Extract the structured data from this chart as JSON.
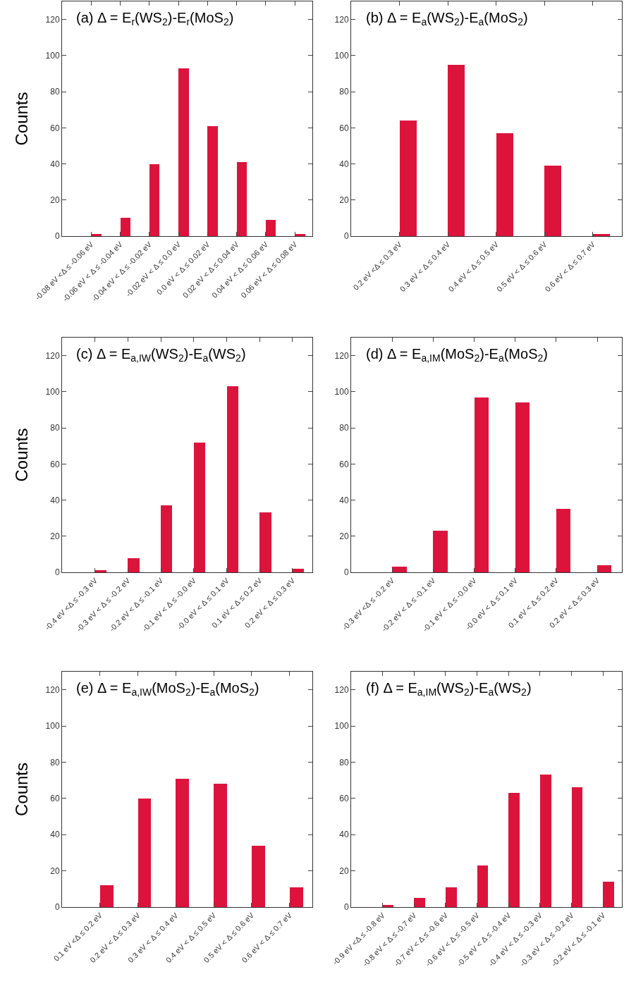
{
  "chart_data": [
    {
      "type": "bar",
      "title": "(a) Δ = E$_{r}$(WS$_{2}$)-E$_{r}$(MoS$_{2}$)",
      "ylabel": "Counts",
      "categories": [
        "-0.08 eV <Δ ≤ -0.06 eV",
        "-0.06 eV < Δ ≤ -0.04 eV",
        "-0.04 eV < Δ ≤ -0.02 eV",
        "-0.02 eV < Δ ≤ 0.0 eV",
        "0.0 eV < Δ ≤ 0.02 eV",
        "0.02 eV < Δ ≤ 0.04 eV",
        "0.04 eV < Δ ≤ 0.06 eV",
        "0.06 eV < Δ ≤ 0.08 eV"
      ],
      "values": [
        1,
        10,
        40,
        93,
        61,
        41,
        9,
        1
      ],
      "color": "#dc143c",
      "ylim": [
        0,
        130
      ],
      "yticks": [
        0,
        20,
        40,
        60,
        80,
        100,
        120
      ]
    },
    {
      "type": "bar",
      "title": "(b) Δ = E$_{a}$(WS$_{2}$)-E$_{a}$(MoS$_{2}$)",
      "categories": [
        "0.2 eV <Δ ≤ 0.3 eV",
        "0.3 eV < Δ ≤ 0.4 eV",
        "0.4 eV < Δ ≤ 0.5 eV",
        "0.5 eV < Δ ≤ 0.6 eV",
        "0.6 eV < Δ ≤ 0.7 eV"
      ],
      "values": [
        64,
        95,
        57,
        39,
        1
      ],
      "color": "#dc143c",
      "ylim": [
        0,
        130
      ],
      "yticks": [
        0,
        20,
        40,
        60,
        80,
        100,
        120
      ]
    },
    {
      "type": "bar",
      "title": "(c) Δ = E$_{a,IW}$(WS$_{2}$)-E$_{a}$(WS$_{2}$)",
      "ylabel": "Counts",
      "categories": [
        "-0.4 eV <Δ ≤ -0.3 eV",
        "-0.3 eV < Δ ≤ -0.2 eV",
        "-0.2 eV < Δ ≤ -0.1 eV",
        "-0.1 eV < Δ ≤ -0.0 eV",
        "-0.0 eV < Δ ≤ 0.1 eV",
        "0.1 eV < Δ ≤ 0.2 eV",
        "0.2 eV < Δ ≤ 0.3 eV"
      ],
      "values": [
        1,
        8,
        37,
        72,
        103,
        33,
        2
      ],
      "color": "#dc143c",
      "ylim": [
        0,
        130
      ],
      "yticks": [
        0,
        20,
        40,
        60,
        80,
        100,
        120
      ]
    },
    {
      "type": "bar",
      "title": "(d) Δ = E$_{a,IM}$(MoS$_{2}$)-E$_{a}$(MoS$_{2}$)",
      "categories": [
        "-0.3 eV <Δ ≤ -0.2 eV",
        "-0.2 eV < Δ ≤ -0.1 eV",
        "-0.1 eV < Δ ≤ -0.0 eV",
        "-0.0 eV < Δ ≤ 0.1 eV",
        "0.1 eV < Δ ≤ 0.2 eV",
        "0.2 eV < Δ ≤ 0.3 eV"
      ],
      "values": [
        3,
        23,
        97,
        94,
        35,
        4
      ],
      "color": "#dc143c",
      "ylim": [
        0,
        130
      ],
      "yticks": [
        0,
        20,
        40,
        60,
        80,
        100,
        120
      ]
    },
    {
      "type": "bar",
      "title": "(e) Δ = E$_{a,IW}$(MoS$_{2}$)-E$_{a}$(MoS$_{2}$)",
      "ylabel": "Counts",
      "categories": [
        "0.1 eV <Δ ≤ 0.2 eV",
        "0.2 eV < Δ ≤ 0.3 eV",
        "0.3 eV < Δ ≤ 0.4 eV",
        "0.4 eV < Δ ≤ 0.5 eV",
        "0.5 eV < Δ ≤ 0.6 eV",
        "0.6 eV < Δ ≤ 0.7 eV"
      ],
      "values": [
        12,
        60,
        71,
        68,
        34,
        11
      ],
      "color": "#dc143c",
      "ylim": [
        0,
        130
      ],
      "yticks": [
        0,
        20,
        40,
        60,
        80,
        100,
        120
      ]
    },
    {
      "type": "bar",
      "title": "(f) Δ = E$_{a,IM}$(WS$_{2}$)-E$_{a}$(WS$_{2}$)",
      "categories": [
        "-0.9 eV <Δ ≤ -0.8 eV",
        "-0.8 eV < Δ ≤ -0.7 eV",
        "-0.7 eV < Δ ≤ -0.6 eV",
        "-0.6 eV < Δ ≤ -0.5 eV",
        "-0.5 eV < Δ ≤ -0.4 eV",
        "-0.4 eV < Δ ≤ -0.3 eV",
        "-0.3 eV < Δ ≤ -0.2 eV",
        "-0.2 eV < Δ ≤ -0.1 eV"
      ],
      "values": [
        1,
        5,
        11,
        23,
        63,
        73,
        66,
        14
      ],
      "color": "#dc143c",
      "ylim": [
        0,
        130
      ],
      "yticks": [
        0,
        20,
        40,
        60,
        80,
        100,
        120
      ]
    }
  ]
}
